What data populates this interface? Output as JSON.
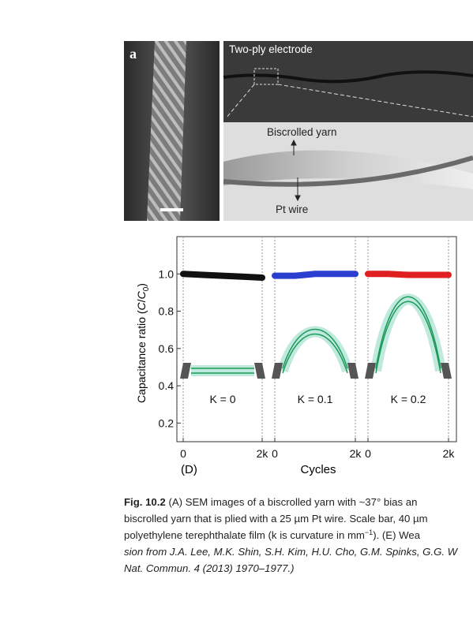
{
  "figure_a": {
    "panel_label": "a",
    "title": "Two-ply electrode",
    "top_label": "Biscrolled yarn",
    "bottom_label": "Pt wire"
  },
  "chart_data": {
    "type": "line",
    "ylabel": [
      "Capacitance ratio (",
      "C",
      "/",
      "C",
      "0",
      ")"
    ],
    "xlabel": "Cycles",
    "panel_label": "(D)",
    "ylim": [
      0.1,
      1.2
    ],
    "yticks": [
      {
        "value": 0.2,
        "label": "0.2"
      },
      {
        "value": 0.4,
        "label": "0.4"
      },
      {
        "value": 0.6,
        "label": "0.6"
      },
      {
        "value": 0.8,
        "label": "0.8"
      },
      {
        "value": 1.0,
        "label": "1.0"
      }
    ],
    "series": [
      {
        "color": "#111111",
        "annotation": "K = 0",
        "xlim": [
          0,
          2000
        ],
        "xticks": [
          0,
          {
            "value": 2000,
            "label": "2k"
          }
        ],
        "x": [
          0,
          500,
          1000,
          1500,
          2000
        ],
        "values": [
          1.0,
          0.995,
          0.99,
          0.985,
          0.98
        ]
      },
      {
        "color": "#2a3fd0",
        "annotation": "K = 0.1",
        "xlim": [
          0,
          2000
        ],
        "xticks": [
          0,
          {
            "value": 2000,
            "label": "2k"
          }
        ],
        "x": [
          0,
          500,
          1000,
          1500,
          2000
        ],
        "values": [
          0.99,
          0.99,
          1.0,
          1.0,
          1.0
        ]
      },
      {
        "color": "#e02020",
        "annotation": "K = 0.2",
        "xlim": [
          0,
          2000
        ],
        "xticks": [
          0,
          {
            "value": 2000,
            "label": "2k"
          }
        ],
        "x": [
          0,
          500,
          1000,
          1500,
          2000
        ],
        "values": [
          1.0,
          1.0,
          0.995,
          0.995,
          0.995
        ]
      }
    ]
  },
  "caption": {
    "label": "Fig. 10.2",
    "line1": "(A) SEM images of a biscrolled yarn with ~37° bias an",
    "line2": "biscrolled yarn that is plied with a 25 µm Pt wire. Scale bar, 40 µm",
    "line3": [
      "polyethylene terephthalate film (k is curvature in mm",
      "−1",
      "). (E) Wea"
    ],
    "line4": "sion from J.A. Lee, M.K. Shin, S.H. Kim, H.U. Cho, G.M. Spinks, G.G. W",
    "line5": "Nat. Commun. 4 (2013) 1970–1977.)"
  }
}
